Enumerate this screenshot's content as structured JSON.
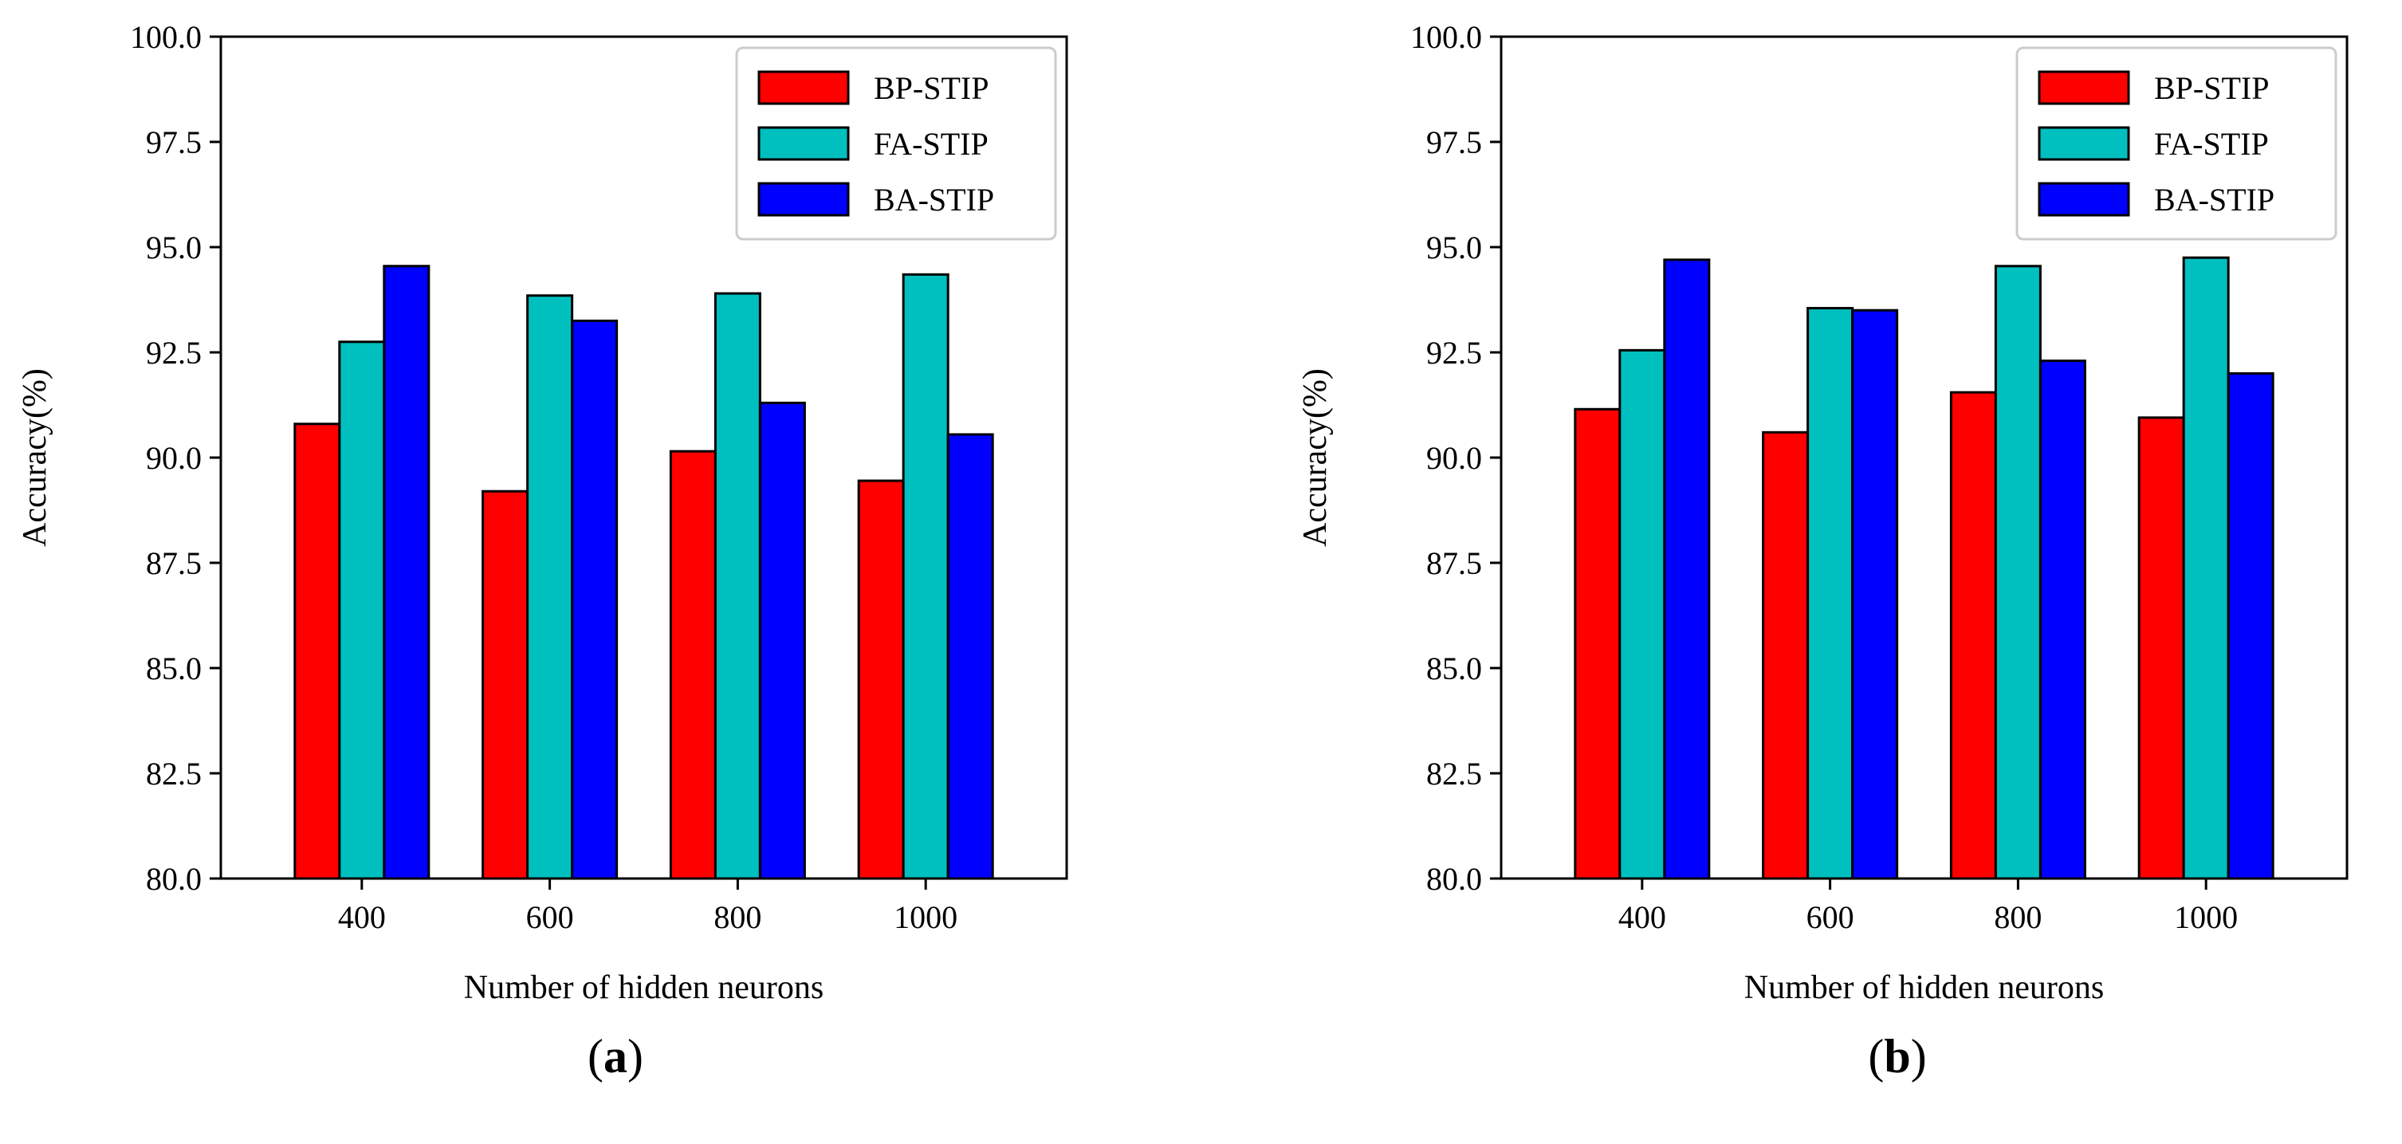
{
  "chart_data": [
    {
      "type": "bar",
      "panel": "a",
      "categories": [
        "400",
        "600",
        "800",
        "1000"
      ],
      "series": [
        {
          "name": "BP-STIP",
          "color": "#ff0000",
          "values": [
            90.8,
            89.2,
            90.15,
            89.45
          ]
        },
        {
          "name": "FA-STIP",
          "color": "#00bfbf",
          "values": [
            92.75,
            93.85,
            93.9,
            94.35
          ]
        },
        {
          "name": "BA-STIP",
          "color": "#0000ff",
          "values": [
            94.55,
            93.25,
            91.3,
            90.55
          ]
        }
      ],
      "xlabel": "Number of hidden neurons",
      "ylabel": "Accuracy(%)",
      "ylim": [
        80,
        100
      ],
      "yticks": [
        "80.0",
        "82.5",
        "85.0",
        "87.5",
        "90.0",
        "92.5",
        "95.0",
        "97.5",
        "100.0"
      ],
      "legend_position": "top-right",
      "caption_paren_open": "(",
      "caption_letter": "a",
      "caption_paren_close": ")"
    },
    {
      "type": "bar",
      "panel": "b",
      "categories": [
        "400",
        "600",
        "800",
        "1000"
      ],
      "series": [
        {
          "name": "BP-STIP",
          "color": "#ff0000",
          "values": [
            91.15,
            90.6,
            91.55,
            90.95
          ]
        },
        {
          "name": "FA-STIP",
          "color": "#00bfbf",
          "values": [
            92.55,
            93.55,
            94.55,
            94.75
          ]
        },
        {
          "name": "BA-STIP",
          "color": "#0000ff",
          "values": [
            94.7,
            93.5,
            92.3,
            92.0
          ]
        }
      ],
      "xlabel": "Number of hidden neurons",
      "ylabel": "Accuracy(%)",
      "ylim": [
        80,
        100
      ],
      "yticks": [
        "80.0",
        "82.5",
        "85.0",
        "87.5",
        "90.0",
        "92.5",
        "95.0",
        "97.5",
        "100.0"
      ],
      "legend_position": "top-right",
      "caption_paren_open": "(",
      "caption_letter": "b",
      "caption_paren_close": ")"
    }
  ]
}
